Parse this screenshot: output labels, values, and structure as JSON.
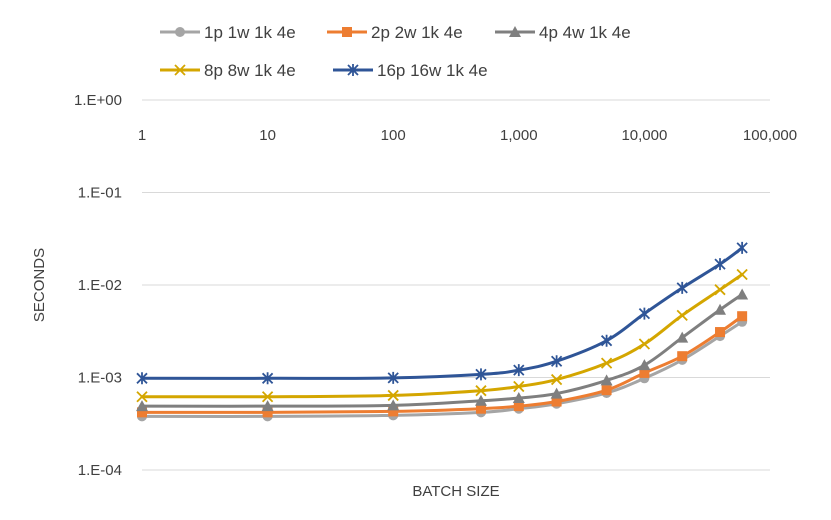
{
  "chart_data": {
    "type": "line",
    "title": "",
    "xlabel": "BATCH SIZE",
    "ylabel": "SECONDS",
    "xscale": "log",
    "yscale": "log",
    "xlim": [
      1,
      100000
    ],
    "ylim": [
      0.0001,
      1
    ],
    "x_tick_values": [
      1,
      10,
      100,
      1000,
      10000,
      100000
    ],
    "x_tick_labels": [
      "1",
      "10",
      "100",
      "1,000",
      "10,000",
      "100,000"
    ],
    "y_tick_values": [
      1,
      0.1,
      0.01,
      0.001,
      0.0001
    ],
    "y_tick_labels": [
      "1.E+00",
      "1.E-01",
      "1.E-02",
      "1.E-03",
      "1.E-04"
    ],
    "x_axis_position": "top",
    "grid": "horizontal",
    "legend_position": "top",
    "x": [
      1,
      10,
      100,
      500,
      1000,
      2000,
      5000,
      10000,
      20000,
      40000,
      60000
    ],
    "series": [
      {
        "name": "1p 1w 1k 4e",
        "color": "#A5A5A5",
        "marker": "circle",
        "values": [
          0.00038,
          0.00038,
          0.00039,
          0.00042,
          0.00046,
          0.00052,
          0.00068,
          0.00098,
          0.00155,
          0.0028,
          0.004
        ]
      },
      {
        "name": "2p 2w 1k 4e",
        "color": "#ED7D31",
        "marker": "square",
        "values": [
          0.00042,
          0.00042,
          0.00043,
          0.00046,
          0.00049,
          0.00055,
          0.00073,
          0.00112,
          0.0017,
          0.0031,
          0.0046
        ]
      },
      {
        "name": "4p 4w 1k 4e",
        "color": "#7F7F7F",
        "marker": "triangle",
        "values": [
          0.00049,
          0.00049,
          0.0005,
          0.00056,
          0.0006,
          0.00067,
          0.00093,
          0.00136,
          0.0027,
          0.0054,
          0.0079
        ]
      },
      {
        "name": "8p 8w 1k 4e",
        "color": "#D4A600",
        "marker": "x",
        "values": [
          0.00062,
          0.00062,
          0.00064,
          0.00072,
          0.0008,
          0.00095,
          0.00143,
          0.0023,
          0.0047,
          0.0089,
          0.013
        ]
      },
      {
        "name": "16p 16w 1k 4e",
        "color": "#2F5597",
        "marker": "star",
        "values": [
          0.00098,
          0.00098,
          0.00099,
          0.00108,
          0.0012,
          0.0015,
          0.0025,
          0.0049,
          0.0093,
          0.0168,
          0.0252
        ]
      }
    ]
  }
}
